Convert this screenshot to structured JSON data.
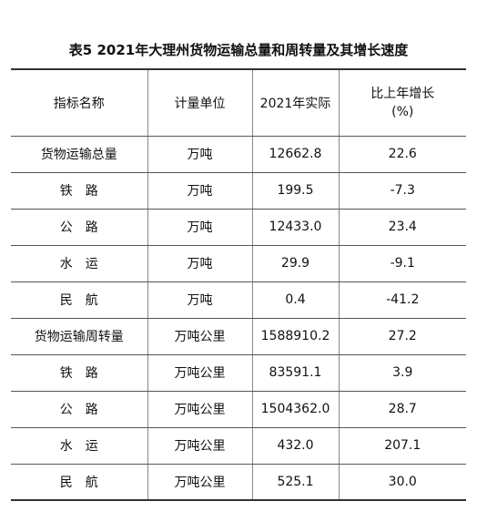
{
  "title": "表5  2021年大理州货物运输总量和周转量及其增长速度",
  "headers": {
    "name": "指标名称",
    "unit": "计量单位",
    "actual": "2021年实际",
    "growth_line1": "比上年增长",
    "growth_line2": "(%)"
  },
  "rows": [
    {
      "name": "货物运输总量",
      "unit": "万吨",
      "actual": "12662.8",
      "growth": "22.6"
    },
    {
      "name": "铁路",
      "unit": "万吨",
      "actual": "199.5",
      "growth": "-7.3"
    },
    {
      "name": "公路",
      "unit": "万吨",
      "actual": "12433.0",
      "growth": "23.4"
    },
    {
      "name": "水运",
      "unit": "万吨",
      "actual": "29.9",
      "growth": "-9.1"
    },
    {
      "name": "民航",
      "unit": "万吨",
      "actual": "0.4",
      "growth": "-41.2"
    },
    {
      "name": "货物运输周转量",
      "unit": "万吨公里",
      "actual": "1588910.2",
      "growth": "27.2"
    },
    {
      "name": "铁路",
      "unit": "万吨公里",
      "actual": "83591.1",
      "growth": "3.9"
    },
    {
      "name": "公路",
      "unit": "万吨公里",
      "actual": "1504362.0",
      "growth": "28.7"
    },
    {
      "name": "水运",
      "unit": "万吨公里",
      "actual": "432.0",
      "growth": "207.1"
    },
    {
      "name": "民航",
      "unit": "万吨公里",
      "actual": "525.1",
      "growth": "30.0"
    }
  ]
}
